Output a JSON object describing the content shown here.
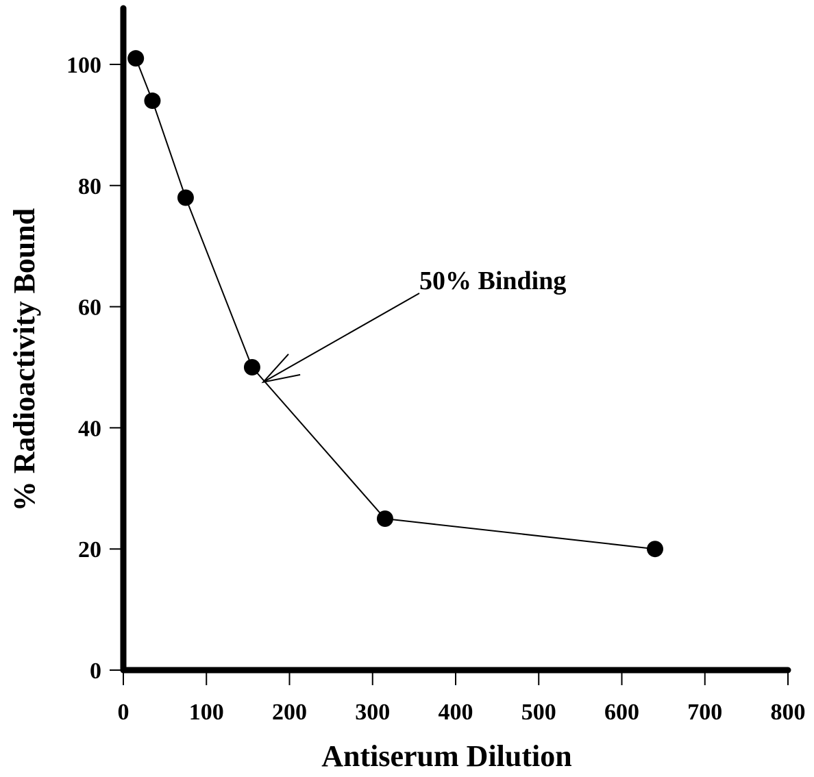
{
  "chart_data": {
    "type": "line",
    "title": "",
    "xlabel": "Antiserum Dilution",
    "ylabel": "% Radioactivity Bound",
    "xlim": [
      0,
      800
    ],
    "ylim": [
      0,
      110
    ],
    "x_ticks": [
      0,
      100,
      200,
      300,
      400,
      500,
      600,
      700,
      800
    ],
    "y_ticks": [
      0,
      20,
      40,
      60,
      80,
      100
    ],
    "grid": false,
    "series": [
      {
        "x": [
          15,
          35,
          75,
          155,
          315,
          640
        ],
        "y": [
          101,
          94,
          78,
          50,
          25,
          20
        ]
      }
    ],
    "annotations": [
      {
        "text": "50% Binding",
        "points_to": {
          "x": 175,
          "y": 48
        }
      }
    ],
    "line_color": "#000000",
    "marker_color": "#000000"
  }
}
